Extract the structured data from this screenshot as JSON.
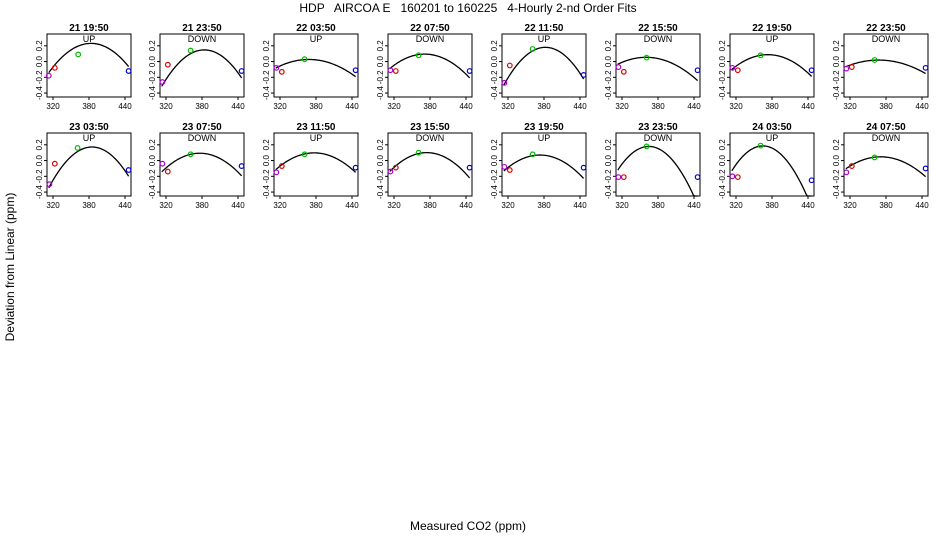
{
  "title": "HDP   AIRCOA E   160201 to 160225   4-Hourly 2-nd Order Fits",
  "xlabel": "Measured CO2 (ppm)",
  "ylabel": "Deviation from Linear (ppm)",
  "chart_data": {
    "type": "scatter",
    "panels_layout": "2 rows x 8 columns",
    "xlim": [
      310,
      450
    ],
    "ylim": [
      -0.45,
      0.35
    ],
    "xticks": [
      320,
      380,
      440
    ],
    "yticks": [
      -0.4,
      -0.2,
      0.0,
      0.2
    ],
    "point_colors": {
      "p1": "#aa00cc",
      "p2": "#dd0000",
      "p3": "#00bb00",
      "p4": "#0000cc"
    },
    "panels": [
      {
        "title": "21 19:50",
        "direction": "UP",
        "points": [
          [
            313,
            -0.18
          ],
          [
            323,
            -0.08
          ],
          [
            362,
            0.09
          ],
          [
            446,
            -0.12
          ]
        ],
        "fit": [
          -7.5e-05,
          0.0575,
          -10.79
        ]
      },
      {
        "title": "21 23:50",
        "direction": "DOWN",
        "points": [
          [
            314,
            -0.26
          ],
          [
            323,
            -0.04
          ],
          [
            361,
            0.14
          ],
          [
            446,
            -0.12
          ]
        ],
        "fit": [
          -9.21e-05,
          0.0707,
          -13.42
        ]
      },
      {
        "title": "22 03:50",
        "direction": "UP",
        "points": [
          [
            314,
            -0.08
          ],
          [
            323,
            -0.13
          ],
          [
            361,
            0.03
          ],
          [
            446,
            -0.11
          ]
        ],
        "fit": [
          -3.6e-05,
          0.0265,
          -4.85
        ]
      },
      {
        "title": "22 07:50",
        "direction": "DOWN",
        "points": [
          [
            314,
            -0.11
          ],
          [
            323,
            -0.12
          ],
          [
            361,
            0.08
          ],
          [
            446,
            -0.12
          ]
        ],
        "fit": [
          -5.4e-05,
          0.0401,
          -7.35
        ]
      },
      {
        "title": "22 11:50",
        "direction": "UP",
        "points": [
          [
            314,
            -0.27
          ],
          [
            323,
            -0.05
          ],
          [
            361,
            0.16
          ],
          [
            446,
            -0.17
          ]
        ],
        "fit": [
          -9.95e-05,
          0.0761,
          -14.37
        ]
      },
      {
        "title": "22 15:50",
        "direction": "DOWN",
        "points": [
          [
            314,
            -0.07
          ],
          [
            323,
            -0.13
          ],
          [
            361,
            0.05
          ],
          [
            446,
            -0.11
          ]
        ],
        "fit": [
          -4e-05,
          0.0288,
          -5.13
        ]
      },
      {
        "title": "22 19:50",
        "direction": "UP",
        "points": [
          [
            314,
            -0.08
          ],
          [
            323,
            -0.11
          ],
          [
            361,
            0.08
          ],
          [
            446,
            -0.11
          ]
        ],
        "fit": [
          -5.2e-05,
          0.0388,
          -7.15
        ]
      },
      {
        "title": "22 23:50",
        "direction": "DOWN",
        "points": [
          [
            314,
            -0.09
          ],
          [
            323,
            -0.07
          ],
          [
            361,
            0.02
          ],
          [
            446,
            -0.08
          ]
        ],
        "fit": [
          -2.8e-05,
          0.0206,
          -3.77
        ]
      },
      {
        "title": "23 03:50",
        "direction": "UP",
        "points": [
          [
            314,
            -0.3
          ],
          [
            323,
            -0.04
          ],
          [
            361,
            0.16
          ],
          [
            446,
            -0.12
          ]
        ],
        "fit": [
          -0.0001,
          0.077,
          -14.65
        ]
      },
      {
        "title": "23 07:50",
        "direction": "DOWN",
        "points": [
          [
            314,
            -0.04
          ],
          [
            323,
            -0.14
          ],
          [
            361,
            0.08
          ],
          [
            446,
            -0.07
          ]
        ],
        "fit": [
          -5.9e-05,
          0.0444,
          -8.26
        ]
      },
      {
        "title": "23 11:50",
        "direction": "UP",
        "points": [
          [
            314,
            -0.15
          ],
          [
            323,
            -0.07
          ],
          [
            361,
            0.08
          ],
          [
            446,
            -0.09
          ]
        ],
        "fit": [
          -5.2e-05,
          0.0392,
          -7.29
        ]
      },
      {
        "title": "23 15:50",
        "direction": "DOWN",
        "points": [
          [
            314,
            -0.14
          ],
          [
            323,
            -0.09
          ],
          [
            361,
            0.1
          ],
          [
            446,
            -0.09
          ]
        ],
        "fit": [
          -6.3e-05,
          0.0472,
          -8.74
        ]
      },
      {
        "title": "23 19:50",
        "direction": "UP",
        "points": [
          [
            314,
            -0.08
          ],
          [
            323,
            -0.12
          ],
          [
            361,
            0.08
          ],
          [
            446,
            -0.09
          ]
        ],
        "fit": [
          -5.6e-05,
          0.0418,
          -7.73
        ]
      },
      {
        "title": "23 23:50",
        "direction": "DOWN",
        "points": [
          [
            314,
            -0.21
          ],
          [
            323,
            -0.21
          ],
          [
            361,
            0.18
          ],
          [
            446,
            -0.21
          ]
        ],
        "fit": [
          -0.000112,
          0.0817,
          -14.72
        ]
      },
      {
        "title": "24 03:50",
        "direction": "UP",
        "points": [
          [
            314,
            -0.2
          ],
          [
            323,
            -0.21
          ],
          [
            361,
            0.19
          ],
          [
            446,
            -0.25
          ]
        ],
        "fit": [
          -0.000118,
          0.0861,
          -15.52
        ]
      },
      {
        "title": "24 07:50",
        "direction": "DOWN",
        "points": [
          [
            314,
            -0.15
          ],
          [
            323,
            -0.07
          ],
          [
            361,
            0.04
          ],
          [
            446,
            -0.1
          ]
        ],
        "fit": [
          -4.5e-05,
          0.0334,
          -6.15
        ]
      }
    ]
  }
}
